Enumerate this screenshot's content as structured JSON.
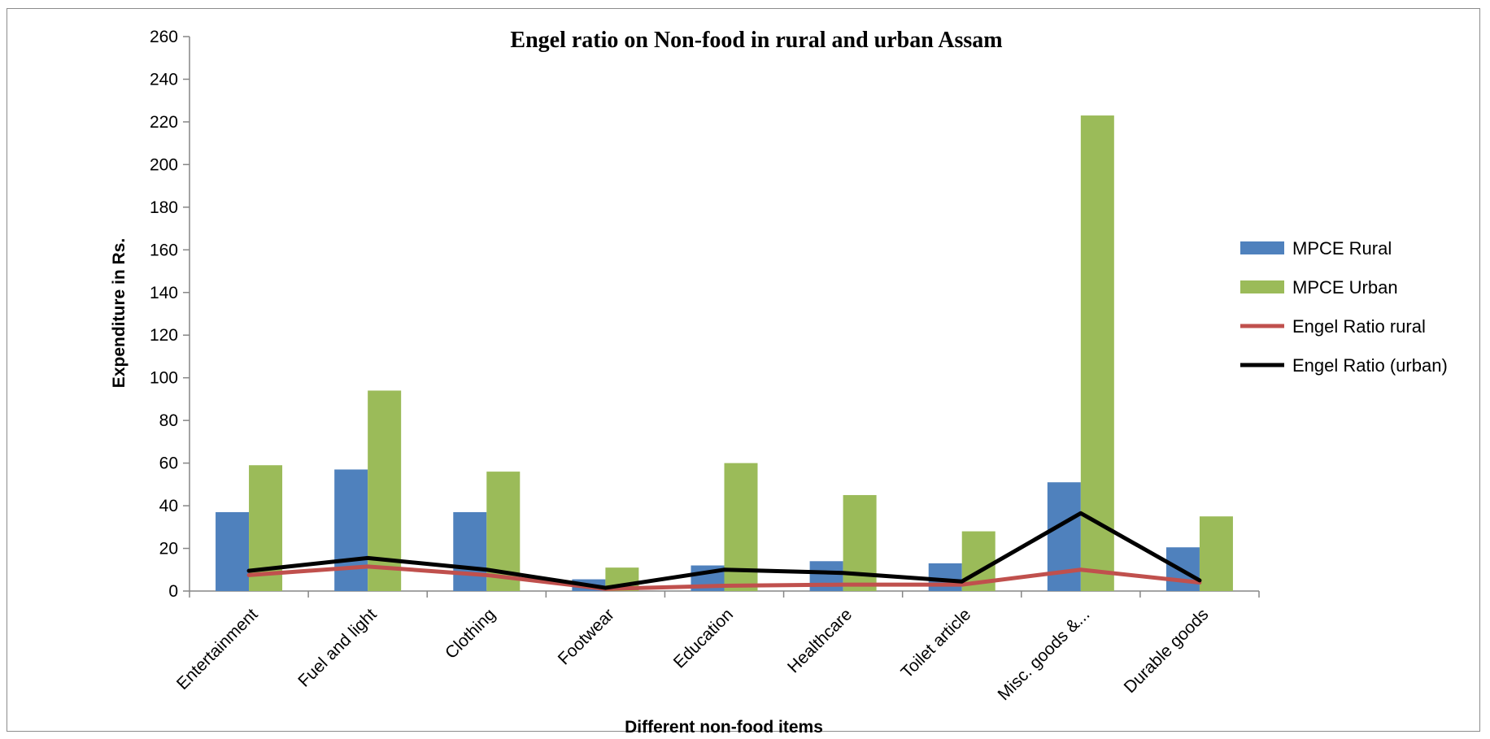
{
  "chart_data": {
    "type": "bar",
    "title": "Engel ratio on Non-food in rural and urban Assam",
    "xlabel": "Different non-food items",
    "ylabel": "Expenditure in Rs.",
    "ylim": [
      0,
      260
    ],
    "yticks": [
      0,
      20,
      40,
      60,
      80,
      100,
      120,
      140,
      160,
      180,
      200,
      220,
      240,
      260
    ],
    "categories": [
      "Entertainment",
      "Fuel and light",
      "Clothing",
      "Footwear",
      "Education",
      "Healthcare",
      "Toilet article",
      "Misc. goods &...",
      "Durable goods"
    ],
    "series": [
      {
        "name": "MPCE Rural",
        "kind": "bar",
        "color": "#4f81bd",
        "values": [
          37,
          57,
          37,
          5.5,
          12,
          14,
          13,
          51,
          20.5
        ]
      },
      {
        "name": "MPCE Urban",
        "kind": "bar",
        "color": "#9bbb59",
        "values": [
          59,
          94,
          56,
          11,
          60,
          45,
          28,
          223,
          35
        ]
      },
      {
        "name": "Engel Ratio rural",
        "kind": "line",
        "color": "#c0504d",
        "values": [
          7.5,
          11.5,
          7.5,
          1,
          2.5,
          3,
          3,
          10,
          4
        ]
      },
      {
        "name": "Engel Ratio (urban)",
        "kind": "line",
        "color": "#000000",
        "values": [
          9.5,
          15.5,
          10,
          1.5,
          10,
          8.5,
          4.5,
          36.5,
          5
        ]
      }
    ],
    "grid": false,
    "legend_position": "right"
  }
}
